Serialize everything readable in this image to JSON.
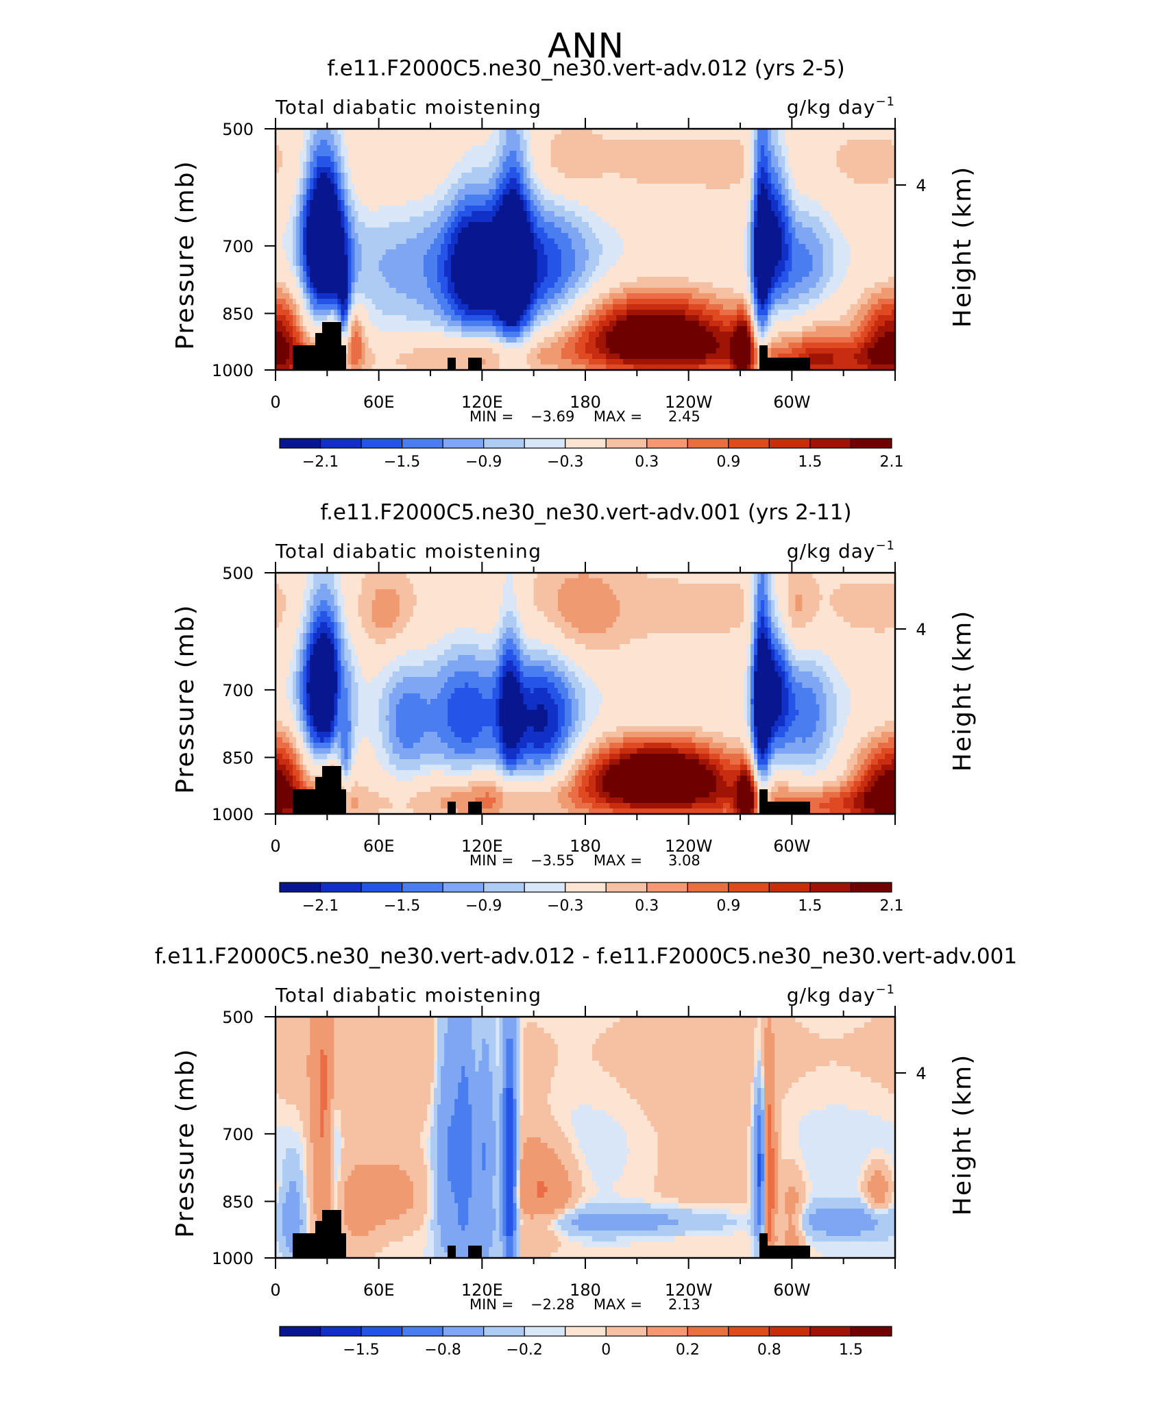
{
  "page": {
    "title": "ANN"
  },
  "colors": {
    "blue_dark": "#08178f",
    "white_mid": "#fbf2ea",
    "red_dark": "#6e0000",
    "land": "#000000"
  },
  "chart_data": [
    {
      "type": "heatmap",
      "title": "f.e11.F2000C5.ne30_ne30.vert-adv.012 (yrs 2-5)",
      "left_label": "Total diabatic moistening",
      "units_base": "g/kg day",
      "units_sup": "−1",
      "ylabel": "Pressure (mb)",
      "ylabel_right": "Height (km)",
      "y_ticks": [
        "500",
        "700",
        "850",
        "1000"
      ],
      "y_right_ticks": [
        "4"
      ],
      "x_ticks": [
        "0",
        "60E",
        "120E",
        "180",
        "120W",
        "60W"
      ],
      "stats": {
        "min_label": "MIN =",
        "min": "−3.69",
        "max_label": "MAX =",
        "max": "2.45"
      },
      "colorbar": {
        "colors": [
          "#08178f",
          "#1030c8",
          "#2555e8",
          "#4a7ef0",
          "#7ea6f2",
          "#aecbf4",
          "#d8e6f7",
          "#fde4d2",
          "#f6c1a2",
          "#f09a72",
          "#ea6e45",
          "#e04a22",
          "#c82d10",
          "#a01405",
          "#6e0000"
        ],
        "labels": [
          "−2.1",
          "−1.5",
          "−0.9",
          "−0.3",
          "0.3",
          "0.9",
          "1.5",
          "2.1"
        ]
      },
      "features": [
        {
          "lon": 28,
          "p": 640,
          "amp": -2.4,
          "wl": 9,
          "wp": 110
        },
        {
          "lon": 28,
          "p": 760,
          "amp": -1.4,
          "wl": 9,
          "wp": 120
        },
        {
          "lon": 34,
          "p": 930,
          "amp": 1.6,
          "wl": 7,
          "wp": 70
        },
        {
          "lon": 40,
          "p": 880,
          "amp": -2.0,
          "wl": 3,
          "wp": 90
        },
        {
          "lon": 8,
          "p": 900,
          "amp": 1.1,
          "wl": 10,
          "wp": 90
        },
        {
          "lon": 95,
          "p": 760,
          "amp": -0.9,
          "wl": 45,
          "wp": 130
        },
        {
          "lon": 115,
          "p": 740,
          "amp": -1.6,
          "wl": 12,
          "wp": 130
        },
        {
          "lon": 138,
          "p": 720,
          "amp": -2.0,
          "wl": 7,
          "wp": 180
        },
        {
          "lon": 155,
          "p": 760,
          "amp": -1.3,
          "wl": 22,
          "wp": 130
        },
        {
          "lon": 120,
          "p": 960,
          "amp": 0.9,
          "wl": 28,
          "wp": 50
        },
        {
          "lon": 45,
          "p": 900,
          "amp": 1.2,
          "wl": 5,
          "wp": 60
        },
        {
          "lon": 170,
          "p": 550,
          "amp": 0.5,
          "wl": 12,
          "wp": 40
        },
        {
          "lon": 218,
          "p": 880,
          "amp": 2.0,
          "wl": 35,
          "wp": 70
        },
        {
          "lon": 228,
          "p": 940,
          "amp": 1.2,
          "wl": 45,
          "wp": 60
        },
        {
          "lon": 272,
          "p": 940,
          "amp": 1.8,
          "wl": 4,
          "wp": 60
        },
        {
          "lon": 282,
          "p": 720,
          "amp": -2.4,
          "wl": 4,
          "wp": 200
        },
        {
          "lon": 291,
          "p": 660,
          "amp": -1.7,
          "wl": 6,
          "wp": 120
        },
        {
          "lon": 308,
          "p": 760,
          "amp": -1.1,
          "wl": 12,
          "wp": 120
        },
        {
          "lon": 315,
          "p": 920,
          "amp": 0.9,
          "wl": 10,
          "wp": 80
        },
        {
          "lon": 352,
          "p": 900,
          "amp": 1.5,
          "wl": 12,
          "wp": 80
        },
        {
          "lon": 330,
          "p": 980,
          "amp": 1.0,
          "wl": 40,
          "wp": 40
        }
      ],
      "base_p1": 0.45,
      "base_p2": -0.25,
      "base_p3": 0.3
    },
    {
      "type": "heatmap",
      "title": "f.e11.F2000C5.ne30_ne30.vert-adv.001 (yrs 2-11)",
      "left_label": "Total diabatic moistening",
      "units_base": "g/kg day",
      "units_sup": "−1",
      "ylabel": "Pressure (mb)",
      "ylabel_right": "Height (km)",
      "y_ticks": [
        "500",
        "700",
        "850",
        "1000"
      ],
      "y_right_ticks": [
        "4"
      ],
      "x_ticks": [
        "0",
        "60E",
        "120E",
        "180",
        "120W",
        "60W"
      ],
      "stats": {
        "min_label": "MIN =",
        "min": "−3.55",
        "max_label": "MAX =",
        "max": "3.08"
      },
      "colorbar": {
        "colors": [
          "#08178f",
          "#1030c8",
          "#2555e8",
          "#4a7ef0",
          "#7ea6f2",
          "#aecbf4",
          "#d8e6f7",
          "#fde4d2",
          "#f6c1a2",
          "#f09a72",
          "#ea6e45",
          "#e04a22",
          "#c82d10",
          "#a01405",
          "#6e0000"
        ],
        "labels": [
          "−2.1",
          "−1.5",
          "−0.9",
          "−0.3",
          "0.3",
          "0.9",
          "1.5",
          "2.1"
        ]
      },
      "features": [
        {
          "lon": 28,
          "p": 650,
          "amp": -2.3,
          "wl": 9,
          "wp": 110
        },
        {
          "lon": 28,
          "p": 770,
          "amp": -1.3,
          "wl": 10,
          "wp": 110
        },
        {
          "lon": 34,
          "p": 930,
          "amp": 1.7,
          "wl": 7,
          "wp": 70
        },
        {
          "lon": 40,
          "p": 860,
          "amp": -1.6,
          "wl": 3,
          "wp": 90
        },
        {
          "lon": 38,
          "p": 760,
          "amp": 1.1,
          "wl": 3,
          "wp": 80
        },
        {
          "lon": 8,
          "p": 900,
          "amp": 1.2,
          "wl": 10,
          "wp": 90
        },
        {
          "lon": 75,
          "p": 780,
          "amp": -1.1,
          "wl": 10,
          "wp": 100
        },
        {
          "lon": 110,
          "p": 760,
          "amp": -1.5,
          "wl": 16,
          "wp": 130
        },
        {
          "lon": 136,
          "p": 720,
          "amp": -1.3,
          "wl": 5,
          "wp": 160
        },
        {
          "lon": 155,
          "p": 780,
          "amp": -2.0,
          "wl": 15,
          "wp": 120
        },
        {
          "lon": 120,
          "p": 950,
          "amp": 1.0,
          "wl": 25,
          "wp": 55
        },
        {
          "lon": 65,
          "p": 560,
          "amp": 0.5,
          "wl": 8,
          "wp": 40
        },
        {
          "lon": 175,
          "p": 560,
          "amp": 0.6,
          "wl": 18,
          "wp": 60
        },
        {
          "lon": 222,
          "p": 880,
          "amp": 2.4,
          "wl": 30,
          "wp": 60
        },
        {
          "lon": 222,
          "p": 940,
          "amp": 1.2,
          "wl": 45,
          "wp": 60
        },
        {
          "lon": 274,
          "p": 960,
          "amp": 2.2,
          "wl": 4,
          "wp": 60
        },
        {
          "lon": 282,
          "p": 730,
          "amp": -2.5,
          "wl": 4,
          "wp": 200
        },
        {
          "lon": 291,
          "p": 680,
          "amp": -1.6,
          "wl": 6,
          "wp": 120
        },
        {
          "lon": 308,
          "p": 760,
          "amp": -1.2,
          "wl": 12,
          "wp": 110
        },
        {
          "lon": 300,
          "p": 560,
          "amp": 0.6,
          "wl": 8,
          "wp": 50
        },
        {
          "lon": 352,
          "p": 910,
          "amp": 1.6,
          "wl": 12,
          "wp": 80
        },
        {
          "lon": 330,
          "p": 980,
          "amp": 1.0,
          "wl": 40,
          "wp": 40
        }
      ],
      "base_p1": 0.45,
      "base_p2": -0.25,
      "base_p3": 0.3
    },
    {
      "type": "heatmap",
      "title": "f.e11.F2000C5.ne30_ne30.vert-adv.012 - f.e11.F2000C5.ne30_ne30.vert-adv.001",
      "left_label": "Total diabatic moistening",
      "units_base": "g/kg day",
      "units_sup": "−1",
      "ylabel": "Pressure (mb)",
      "ylabel_right": "Height (km)",
      "y_ticks": [
        "500",
        "700",
        "850",
        "1000"
      ],
      "y_right_ticks": [
        "4"
      ],
      "x_ticks": [
        "0",
        "60E",
        "120E",
        "180",
        "120W",
        "60W"
      ],
      "stats": {
        "min_label": "MIN =",
        "min": "−2.28",
        "max_label": "MAX =",
        "max": "2.13"
      },
      "colorbar": {
        "colors": [
          "#08178f",
          "#1030c8",
          "#2555e8",
          "#4a7ef0",
          "#7ea6f2",
          "#aecbf4",
          "#d8e6f7",
          "#fde4d2",
          "#f6c1a2",
          "#f09a72",
          "#ea6e45",
          "#e04a22",
          "#c82d10",
          "#a01405",
          "#6e0000"
        ],
        "labels": [
          "−1.5",
          "−0.8",
          "−0.2",
          "0",
          "0.2",
          "0.8",
          "1.5"
        ]
      },
      "features": [
        {
          "lon": 28,
          "p": 700,
          "amp": 0.5,
          "wl": 5,
          "wp": 200
        },
        {
          "lon": 34,
          "p": 760,
          "amp": -0.3,
          "wl": 3,
          "wp": 150
        },
        {
          "lon": 10,
          "p": 900,
          "amp": -0.4,
          "wl": 4,
          "wp": 80
        },
        {
          "lon": 48,
          "p": 860,
          "amp": 0.3,
          "wl": 10,
          "wp": 80
        },
        {
          "lon": 70,
          "p": 830,
          "amp": 0.3,
          "wl": 12,
          "wp": 60
        },
        {
          "lon": 100,
          "p": 720,
          "amp": -0.5,
          "wl": 5,
          "wp": 200
        },
        {
          "lon": 110,
          "p": 720,
          "amp": -0.7,
          "wl": 4,
          "wp": 200
        },
        {
          "lon": 122,
          "p": 750,
          "amp": -0.5,
          "wl": 4,
          "wp": 200
        },
        {
          "lon": 136,
          "p": 780,
          "amp": -1.3,
          "wl": 3,
          "wp": 200
        },
        {
          "lon": 145,
          "p": 820,
          "amp": 0.3,
          "wl": 10,
          "wp": 120
        },
        {
          "lon": 160,
          "p": 820,
          "amp": 0.4,
          "wl": 10,
          "wp": 70
        },
        {
          "lon": 200,
          "p": 900,
          "amp": -0.35,
          "wl": 45,
          "wp": 25
        },
        {
          "lon": 282,
          "p": 780,
          "amp": -1.2,
          "wl": 2.5,
          "wp": 120
        },
        {
          "lon": 286,
          "p": 800,
          "amp": 0.9,
          "wl": 3,
          "wp": 160
        },
        {
          "lon": 300,
          "p": 900,
          "amp": 0.35,
          "wl": 5,
          "wp": 80
        },
        {
          "lon": 330,
          "p": 900,
          "amp": -0.4,
          "wl": 20,
          "wp": 30
        },
        {
          "lon": 250,
          "p": 700,
          "amp": 0.15,
          "wl": 30,
          "wp": 180
        },
        {
          "lon": 60,
          "p": 600,
          "amp": 0.15,
          "wl": 40,
          "wp": 120
        },
        {
          "lon": 350,
          "p": 820,
          "amp": 0.4,
          "wl": 5,
          "wp": 40
        }
      ],
      "base_p1": 0.05,
      "base_p2": -0.05,
      "base_p3": 0.0
    }
  ]
}
